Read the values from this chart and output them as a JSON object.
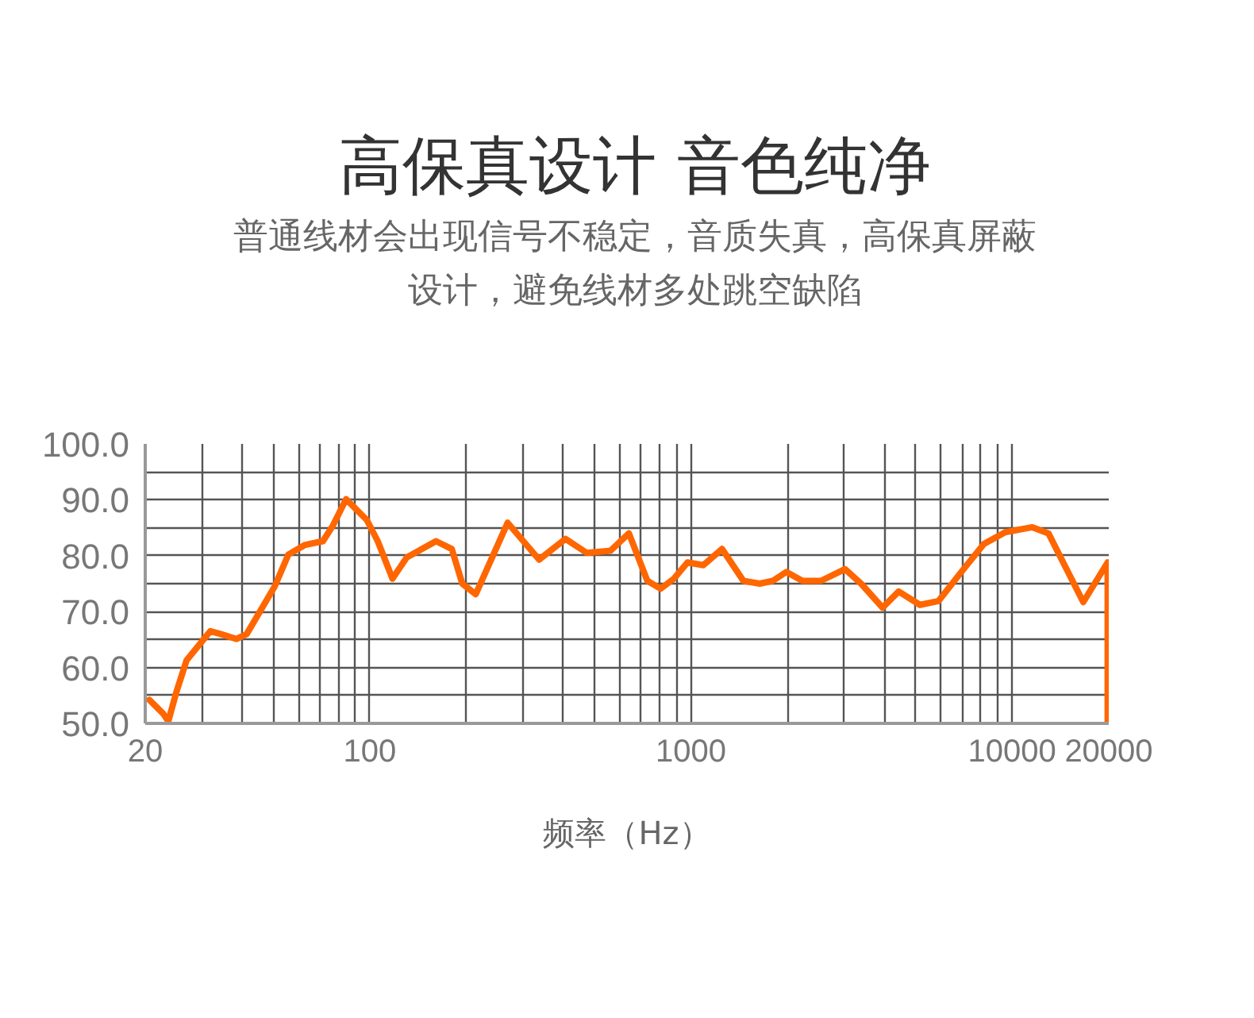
{
  "chart_data": {
    "type": "line",
    "title": "高保真设计 音色纯净",
    "subtitle": "普通线材会出现信号不稳定，音质失真，高保真屏蔽设计，避免线材多处跳空缺陷",
    "xlabel": "频率（Hz）",
    "log": "x",
    "grid": true,
    "marker": "none",
    "line_style": "solid",
    "xlim": [
      20,
      20000
    ],
    "xticks": [
      20,
      {
        "value": 30,
        "label": null
      },
      {
        "value": 40,
        "label": null
      },
      {
        "value": 50,
        "label": null
      },
      {
        "value": 60,
        "label": null
      },
      {
        "value": 70,
        "label": null
      },
      {
        "value": 80,
        "label": null
      },
      {
        "value": 90,
        "label": null
      },
      100,
      {
        "value": 200,
        "label": null
      },
      {
        "value": 300,
        "label": null
      },
      {
        "value": 400,
        "label": null
      },
      {
        "value": 500,
        "label": null
      },
      {
        "value": 600,
        "label": null
      },
      {
        "value": 700,
        "label": null
      },
      {
        "value": 800,
        "label": null
      },
      {
        "value": 900,
        "label": null
      },
      1000,
      {
        "value": 2000,
        "label": null
      },
      {
        "value": 3000,
        "label": null
      },
      {
        "value": 4000,
        "label": null
      },
      {
        "value": 5000,
        "label": null
      },
      {
        "value": 6000,
        "label": null
      },
      {
        "value": 7000,
        "label": null
      },
      {
        "value": 8000,
        "label": null
      },
      {
        "value": 9000,
        "label": null
      },
      10000,
      20000
    ],
    "ylim": [
      50,
      100
    ],
    "yticks": [
      {
        "value": 50,
        "label": "50.0"
      },
      {
        "value": 55,
        "label": null
      },
      {
        "value": 60,
        "label": "60.0"
      },
      {
        "value": 65,
        "label": null
      },
      {
        "value": 70,
        "label": "70.0"
      },
      {
        "value": 75,
        "label": null
      },
      {
        "value": 80,
        "label": "80.0"
      },
      {
        "value": 85,
        "label": null
      },
      {
        "value": 90,
        "label": "90.0"
      },
      {
        "value": 95,
        "label": null
      },
      {
        "value": 100,
        "label": "100.0"
      }
    ],
    "series": [
      {
        "color": "#ff6600",
        "x": [
          20.6,
          22.7,
          23.6,
          25.0,
          26.9,
          31.9,
          34.3,
          38.5,
          41.4,
          50.6,
          55.8,
          62.7,
          71.5,
          76.8,
          84.4,
          97.9,
          105.9,
          117.7,
          130.4,
          160.8,
          180.1,
          194.2,
          213.8,
          268.7,
          336.8,
          406.9,
          473.8,
          562.5,
          641.1,
          731.9,
          805,
          886,
          976,
          1093,
          1250,
          1457,
          1637,
          1799,
          1982,
          2225,
          2540,
          3020,
          3387,
          3951,
          4434,
          5165,
          5904,
          7018,
          8171,
          9521,
          11560,
          12980,
          14570,
          16660,
          19840,
          19840
        ],
        "values": [
          54.2,
          51.8,
          50.4,
          55.6,
          61.3,
          66.5,
          66.0,
          65.1,
          66.0,
          74.5,
          80.2,
          81.9,
          82.6,
          85.4,
          90.1,
          86.4,
          82.6,
          75.9,
          79.7,
          82.6,
          81.2,
          75.0,
          73.1,
          85.9,
          79.3,
          83.0,
          80.5,
          80.9,
          84.0,
          75.5,
          74.1,
          75.9,
          78.8,
          78.3,
          81.2,
          75.5,
          75.0,
          75.5,
          77.1,
          75.5,
          75.5,
          77.6,
          75.0,
          70.7,
          73.6,
          71.2,
          71.9,
          77.4,
          82.1,
          84.2,
          85.1,
          84.0,
          78.3,
          71.7,
          78.8,
          50.4
        ]
      }
    ]
  }
}
